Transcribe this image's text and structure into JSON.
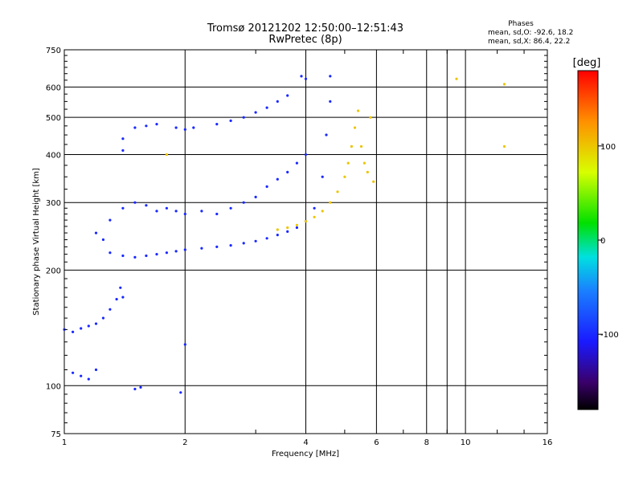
{
  "chart_data": {
    "type": "scatter",
    "title": "Tromsø 20121202 12:50:00–12:51:43",
    "subtitle": "RwPretec (8p)",
    "xlabel": "Frequency [MHz]",
    "ylabel": "Stationary phase Virtual Height [km]",
    "x_scale": "log",
    "y_scale": "log",
    "xlim": [
      1,
      16
    ],
    "ylim": [
      75,
      750
    ],
    "x_ticks": [
      1,
      2,
      4,
      6,
      8,
      10,
      16
    ],
    "x_tick_labels": [
      "1",
      "2",
      "4",
      "6",
      "8",
      "10",
      "16"
    ],
    "y_ticks": [
      75,
      100,
      200,
      300,
      400,
      500,
      600,
      750
    ],
    "y_tick_labels": [
      "75",
      "100",
      "200",
      "300",
      "400",
      "500",
      "600",
      "750"
    ],
    "grid": true,
    "legend_placement": "top-right",
    "stats": {
      "header": "Phases",
      "o_line": "mean, sd,O: -92.6, 18.2",
      "x_line": "mean, sd,X:  86.4, 22.2"
    },
    "colorbar": {
      "label": "[deg]",
      "range": [
        -180,
        180
      ],
      "ticks": [
        100,
        0,
        -100
      ],
      "tick_labels": [
        "100",
        "0",
        "-100"
      ]
    },
    "series": [
      {
        "mode": "O",
        "color_value": -100,
        "points": [
          {
            "x": 1.0,
            "y": 140
          },
          {
            "x": 1.05,
            "y": 138
          },
          {
            "x": 1.1,
            "y": 141
          },
          {
            "x": 1.15,
            "y": 143
          },
          {
            "x": 1.2,
            "y": 145
          },
          {
            "x": 1.25,
            "y": 150
          },
          {
            "x": 1.3,
            "y": 158
          },
          {
            "x": 1.35,
            "y": 168
          },
          {
            "x": 1.38,
            "y": 180
          },
          {
            "x": 1.4,
            "y": 170
          },
          {
            "x": 1.05,
            "y": 108
          },
          {
            "x": 1.1,
            "y": 106
          },
          {
            "x": 1.15,
            "y": 104
          },
          {
            "x": 1.2,
            "y": 110
          },
          {
            "x": 1.5,
            "y": 98
          },
          {
            "x": 1.55,
            "y": 99
          },
          {
            "x": 1.95,
            "y": 96
          },
          {
            "x": 2.0,
            "y": 128
          },
          {
            "x": 1.2,
            "y": 250
          },
          {
            "x": 1.25,
            "y": 240
          },
          {
            "x": 1.3,
            "y": 222
          },
          {
            "x": 1.4,
            "y": 218
          },
          {
            "x": 1.5,
            "y": 216
          },
          {
            "x": 1.6,
            "y": 218
          },
          {
            "x": 1.7,
            "y": 220
          },
          {
            "x": 1.8,
            "y": 222
          },
          {
            "x": 1.9,
            "y": 224
          },
          {
            "x": 2.0,
            "y": 226
          },
          {
            "x": 2.2,
            "y": 228
          },
          {
            "x": 2.4,
            "y": 230
          },
          {
            "x": 2.6,
            "y": 232
          },
          {
            "x": 2.8,
            "y": 235
          },
          {
            "x": 3.0,
            "y": 238
          },
          {
            "x": 3.2,
            "y": 242
          },
          {
            "x": 3.4,
            "y": 247
          },
          {
            "x": 3.6,
            "y": 252
          },
          {
            "x": 3.8,
            "y": 258
          },
          {
            "x": 4.0,
            "y": 268
          },
          {
            "x": 4.2,
            "y": 290
          },
          {
            "x": 4.4,
            "y": 350
          },
          {
            "x": 4.5,
            "y": 450
          },
          {
            "x": 4.6,
            "y": 550
          },
          {
            "x": 4.6,
            "y": 640
          },
          {
            "x": 1.3,
            "y": 270
          },
          {
            "x": 1.4,
            "y": 290
          },
          {
            "x": 1.5,
            "y": 300
          },
          {
            "x": 1.6,
            "y": 295
          },
          {
            "x": 1.7,
            "y": 285
          },
          {
            "x": 1.8,
            "y": 290
          },
          {
            "x": 1.9,
            "y": 285
          },
          {
            "x": 2.0,
            "y": 280
          },
          {
            "x": 2.2,
            "y": 285
          },
          {
            "x": 2.4,
            "y": 280
          },
          {
            "x": 2.6,
            "y": 290
          },
          {
            "x": 2.8,
            "y": 300
          },
          {
            "x": 3.0,
            "y": 310
          },
          {
            "x": 3.2,
            "y": 330
          },
          {
            "x": 3.4,
            "y": 345
          },
          {
            "x": 3.6,
            "y": 360
          },
          {
            "x": 3.8,
            "y": 380
          },
          {
            "x": 4.0,
            "y": 400
          },
          {
            "x": 1.4,
            "y": 410
          },
          {
            "x": 1.4,
            "y": 440
          },
          {
            "x": 1.5,
            "y": 470
          },
          {
            "x": 1.6,
            "y": 475
          },
          {
            "x": 1.7,
            "y": 480
          },
          {
            "x": 1.9,
            "y": 470
          },
          {
            "x": 2.0,
            "y": 465
          },
          {
            "x": 2.1,
            "y": 470
          },
          {
            "x": 2.4,
            "y": 480
          },
          {
            "x": 2.6,
            "y": 490
          },
          {
            "x": 2.8,
            "y": 500
          },
          {
            "x": 3.0,
            "y": 515
          },
          {
            "x": 3.2,
            "y": 530
          },
          {
            "x": 3.4,
            "y": 550
          },
          {
            "x": 3.6,
            "y": 570
          },
          {
            "x": 3.9,
            "y": 640
          },
          {
            "x": 4.0,
            "y": 630
          }
        ]
      },
      {
        "mode": "X",
        "color_value": 100,
        "points": [
          {
            "x": 3.4,
            "y": 255
          },
          {
            "x": 3.6,
            "y": 258
          },
          {
            "x": 3.8,
            "y": 262
          },
          {
            "x": 4.0,
            "y": 268
          },
          {
            "x": 4.2,
            "y": 275
          },
          {
            "x": 4.4,
            "y": 285
          },
          {
            "x": 4.6,
            "y": 300
          },
          {
            "x": 4.8,
            "y": 320
          },
          {
            "x": 5.0,
            "y": 350
          },
          {
            "x": 5.1,
            "y": 380
          },
          {
            "x": 5.2,
            "y": 420
          },
          {
            "x": 5.3,
            "y": 470
          },
          {
            "x": 5.4,
            "y": 520
          },
          {
            "x": 5.5,
            "y": 420
          },
          {
            "x": 5.6,
            "y": 380
          },
          {
            "x": 5.7,
            "y": 360
          },
          {
            "x": 5.8,
            "y": 500
          },
          {
            "x": 5.9,
            "y": 340
          },
          {
            "x": 1.8,
            "y": 400
          },
          {
            "x": 9.5,
            "y": 630
          },
          {
            "x": 12.5,
            "y": 610
          },
          {
            "x": 12.5,
            "y": 420
          }
        ]
      }
    ]
  }
}
